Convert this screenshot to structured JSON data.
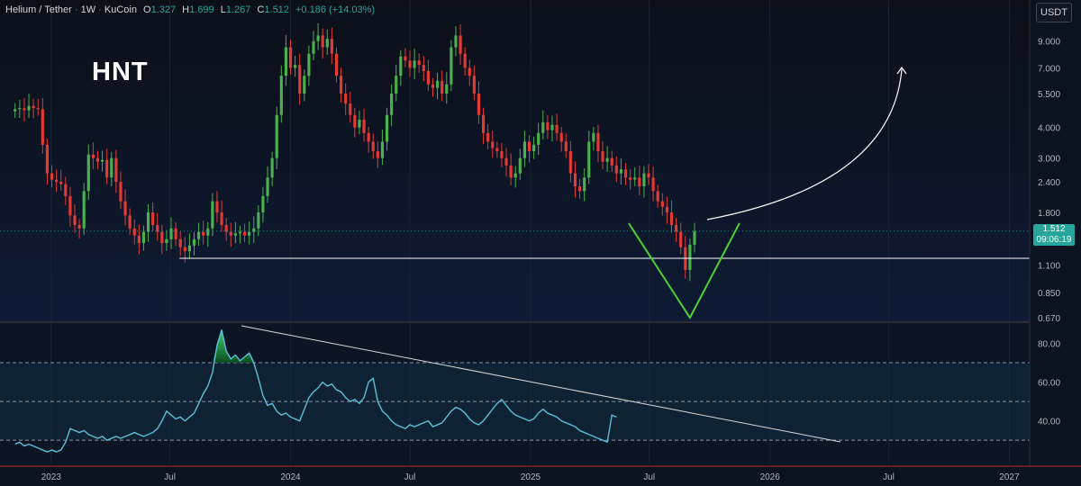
{
  "header": {
    "symbol": "Helium / Tether",
    "interval": "1W",
    "exchange": "KuCoin",
    "open_label": "O",
    "open": "1.327",
    "high_label": "H",
    "high": "1.699",
    "low_label": "L",
    "low": "1.267",
    "close_label": "C",
    "close": "1.512",
    "change": "+0.186 (+14.03%)"
  },
  "annotation_title": "HNT",
  "currency_button": "USDT",
  "last_price": {
    "price": "1.512",
    "countdown": "09:06:19"
  },
  "colors": {
    "background": "#0b1220",
    "bull": "#4caf50",
    "bear": "#e53935",
    "rsi_line": "#5bc0d8",
    "v_pattern": "#4cd137",
    "support_line": "#ffffff",
    "badge": "#26a69a"
  },
  "chart_data": [
    {
      "type": "candlestick",
      "scale": "log",
      "y_axis_ticks": [
        "9.000",
        "7.000",
        "5.500",
        "4.000",
        "3.000",
        "2.400",
        "1.800",
        "1.100",
        "0.850",
        "0.670"
      ],
      "y_axis_values": [
        9.0,
        7.0,
        5.5,
        4.0,
        3.0,
        2.4,
        1.8,
        1.1,
        0.85,
        0.67
      ],
      "ylim": [
        0.67,
        11.0
      ],
      "x_axis_ticks": [
        "2023",
        "Jul",
        "2024",
        "Jul",
        "2025",
        "Jul",
        "2026",
        "Jul",
        "2027"
      ],
      "x_axis_dates": [
        "2023-01-01",
        "2023-07-01",
        "2024-01-01",
        "2024-07-01",
        "2025-01-01",
        "2025-07-01",
        "2026-01-01",
        "2026-07-01",
        "2027-01-01"
      ],
      "xlim": [
        "2022-10-15",
        "2027-02-01"
      ],
      "start_date": "2022-11-07",
      "closes": [
        4.75,
        4.8,
        4.7,
        4.9,
        4.8,
        4.75,
        3.4,
        2.6,
        2.45,
        2.4,
        2.35,
        2.1,
        1.75,
        1.6,
        1.55,
        2.2,
        3.1,
        3.0,
        2.9,
        2.95,
        2.5,
        3.0,
        2.4,
        2.0,
        1.75,
        1.55,
        1.45,
        1.35,
        1.5,
        1.8,
        1.6,
        1.5,
        1.35,
        1.4,
        1.55,
        1.4,
        1.3,
        1.25,
        1.32,
        1.4,
        1.5,
        1.45,
        1.55,
        2.0,
        1.8,
        1.6,
        1.5,
        1.45,
        1.48,
        1.5,
        1.45,
        1.5,
        1.55,
        1.8,
        2.1,
        2.5,
        3.0,
        4.5,
        6.5,
        8.5,
        7.0,
        7.2,
        5.5,
        6.5,
        8.0,
        9.0,
        9.5,
        8.5,
        9.2,
        8.0,
        6.5,
        5.5,
        5.0,
        4.5,
        4.0,
        4.3,
        3.8,
        3.5,
        3.2,
        3.0,
        3.5,
        4.5,
        5.5,
        6.5,
        7.8,
        7.5,
        7.0,
        7.5,
        7.2,
        6.8,
        6.0,
        5.8,
        6.2,
        5.5,
        6.0,
        8.5,
        9.5,
        8.0,
        7.0,
        6.5,
        5.5,
        4.5,
        3.8,
        3.5,
        3.3,
        3.2,
        3.0,
        2.8,
        2.5,
        2.6,
        3.0,
        3.5,
        3.2,
        3.4,
        3.8,
        4.2,
        3.9,
        4.1,
        3.8,
        3.5,
        3.2,
        2.6,
        2.3,
        2.2,
        2.5,
        3.5,
        3.8,
        3.2,
        2.9,
        3.0,
        2.8,
        2.6,
        2.7,
        2.5,
        2.45,
        2.5,
        2.3,
        2.6,
        2.5,
        2.2,
        2.0,
        1.9,
        1.8,
        1.6,
        1.5,
        1.3,
        1.05,
        1.33,
        1.512
      ],
      "support_level": 1.17,
      "current_price": 1.512,
      "annotations": [
        "V-shaped bottom pattern",
        "curved projection arrow upward",
        "horizontal support line"
      ]
    },
    {
      "type": "line",
      "indicator": "RSI",
      "y_axis_ticks": [
        "80.00",
        "60.00",
        "40.00"
      ],
      "y_axis_values": [
        80,
        60,
        40
      ],
      "ylim": [
        18,
        90
      ],
      "levels": [
        70,
        50,
        30
      ],
      "values": [
        28,
        29,
        27,
        28,
        27,
        26,
        25,
        24,
        25,
        24,
        25,
        29,
        36,
        35,
        34,
        35,
        33,
        32,
        31,
        32,
        30,
        31,
        32,
        31,
        32,
        33,
        34,
        33,
        32,
        33,
        34,
        36,
        40,
        45,
        43,
        41,
        42,
        40,
        42,
        44,
        49,
        54,
        58,
        65,
        79,
        87,
        76,
        72,
        74,
        71,
        73,
        75,
        70,
        62,
        53,
        48,
        49,
        45,
        43,
        44,
        42,
        41,
        40,
        46,
        52,
        55,
        57,
        60,
        58,
        59,
        56,
        55,
        52,
        50,
        51,
        49,
        52,
        60,
        62,
        50,
        45,
        43,
        40,
        38,
        37,
        36,
        38,
        37,
        38,
        39,
        40,
        37,
        38,
        39,
        42,
        45,
        47,
        46,
        44,
        41,
        39,
        38,
        40,
        43,
        46,
        49,
        51,
        48,
        45,
        43,
        42,
        41,
        40,
        41,
        44,
        46,
        44,
        43,
        42,
        40,
        39,
        38,
        37,
        35,
        34,
        33,
        32,
        31,
        30,
        29,
        43,
        42
      ],
      "trendline": [
        [
          0,
          90
        ],
        [
          1,
          20
        ]
      ]
    }
  ]
}
